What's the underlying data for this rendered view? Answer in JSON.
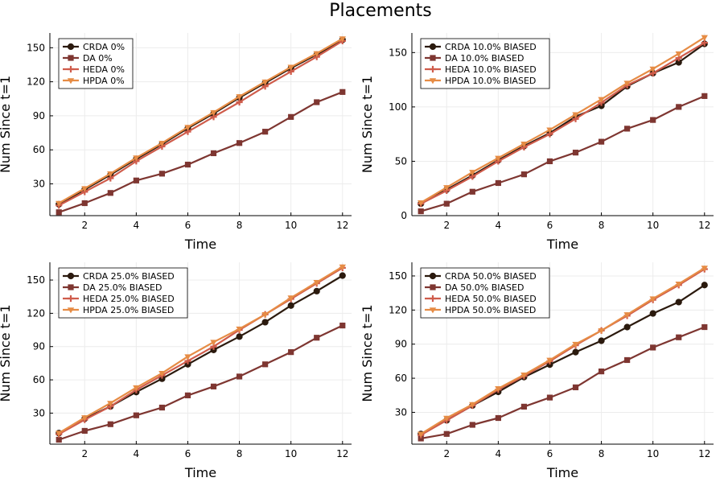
{
  "figure": {
    "title": "Placements"
  },
  "series_styles": [
    {
      "name": "CRDA",
      "color": "#2b1a0e",
      "marker": "circle"
    },
    {
      "name": "DA",
      "color": "#7e3631",
      "marker": "square"
    },
    {
      "name": "HEDA",
      "color": "#cf5c4b",
      "marker": "cross"
    },
    {
      "name": "HPDA",
      "color": "#e68c45",
      "marker": "triangle-down"
    }
  ],
  "chart_data": [
    {
      "type": "line",
      "xlabel": "Time",
      "ylabel": "Num Since t=1",
      "xlim": [
        0.65,
        12.35
      ],
      "ylim": [
        2,
        163
      ],
      "xticks": [
        2,
        4,
        6,
        8,
        10,
        12
      ],
      "yticks": [
        30,
        60,
        90,
        120,
        150
      ],
      "grid": true,
      "legend": "top-left",
      "x": [
        1,
        2,
        3,
        4,
        5,
        6,
        7,
        8,
        9,
        10,
        11,
        12
      ],
      "series": [
        {
          "name": "CRDA 0%",
          "values": [
            12,
            25,
            38,
            52,
            65,
            79,
            92,
            106,
            119,
            132,
            144,
            157
          ]
        },
        {
          "name": "DA 0%",
          "values": [
            5,
            13,
            22,
            33,
            39,
            47,
            57,
            66,
            76,
            89,
            102,
            111
          ]
        },
        {
          "name": "HEDA 0%",
          "values": [
            11,
            23,
            35,
            50,
            63,
            76,
            89,
            102,
            116,
            129,
            142,
            156
          ]
        },
        {
          "name": "HPDA 0%",
          "values": [
            13,
            26,
            39,
            53,
            66,
            80,
            93,
            107,
            120,
            133,
            145,
            158
          ]
        }
      ]
    },
    {
      "type": "line",
      "xlabel": "Time",
      "ylabel": "Num Since t=1",
      "xlim": [
        0.65,
        12.35
      ],
      "ylim": [
        0,
        168
      ],
      "xticks": [
        2,
        4,
        6,
        8,
        10,
        12
      ],
      "yticks": [
        0,
        50,
        100,
        150
      ],
      "grid": true,
      "legend": "top-left",
      "x": [
        1,
        2,
        3,
        4,
        5,
        6,
        7,
        8,
        9,
        10,
        11,
        12
      ],
      "series": [
        {
          "name": "CRDA 10.0% BIASED",
          "values": [
            11,
            24,
            37,
            51,
            64,
            76,
            91,
            101,
            119,
            131,
            141,
            158
          ]
        },
        {
          "name": "DA 10.0% BIASED",
          "values": [
            4,
            11,
            22,
            30,
            38,
            50,
            58,
            68,
            80,
            88,
            100,
            110
          ]
        },
        {
          "name": "HEDA 10.0% BIASED",
          "values": [
            11,
            23,
            36,
            50,
            63,
            75,
            89,
            104,
            120,
            131,
            145,
            159
          ]
        },
        {
          "name": "HPDA 10.0% BIASED",
          "values": [
            12,
            26,
            40,
            53,
            66,
            79,
            93,
            107,
            122,
            135,
            149,
            164
          ]
        }
      ]
    },
    {
      "type": "line",
      "xlabel": "Time",
      "ylabel": "Num Since t=1",
      "xlim": [
        0.65,
        12.35
      ],
      "ylim": [
        2,
        166
      ],
      "xticks": [
        2,
        4,
        6,
        8,
        10,
        12
      ],
      "yticks": [
        30,
        60,
        90,
        120,
        150
      ],
      "grid": true,
      "legend": "top-left",
      "x": [
        1,
        2,
        3,
        4,
        5,
        6,
        7,
        8,
        9,
        10,
        11,
        12
      ],
      "series": [
        {
          "name": "CRDA 25.0% BIASED",
          "values": [
            12,
            25,
            36,
            49,
            61,
            74,
            87,
            99,
            112,
            127,
            140,
            154
          ]
        },
        {
          "name": "DA 25.0% BIASED",
          "values": [
            6,
            14,
            20,
            28,
            35,
            46,
            54,
            63,
            74,
            85,
            98,
            109
          ]
        },
        {
          "name": "HEDA 25.0% BIASED",
          "values": [
            11,
            24,
            36,
            51,
            64,
            77,
            90,
            105,
            119,
            133,
            147,
            161
          ]
        },
        {
          "name": "HPDA 25.0% BIASED",
          "values": [
            12,
            26,
            39,
            53,
            66,
            81,
            94,
            106,
            119,
            134,
            148,
            162
          ]
        }
      ]
    },
    {
      "type": "line",
      "xlabel": "Time",
      "ylabel": "Num Since t=1",
      "xlim": [
        0.65,
        12.35
      ],
      "ylim": [
        2,
        162
      ],
      "xticks": [
        2,
        4,
        6,
        8,
        10,
        12
      ],
      "yticks": [
        30,
        60,
        90,
        120,
        150
      ],
      "grid": true,
      "legend": "top-left",
      "x": [
        1,
        2,
        3,
        4,
        5,
        6,
        7,
        8,
        9,
        10,
        11,
        12
      ],
      "series": [
        {
          "name": "CRDA 50.0% BIASED",
          "values": [
            11,
            23,
            36,
            48,
            61,
            72,
            83,
            93,
            105,
            117,
            127,
            142
          ]
        },
        {
          "name": "DA 50.0% BIASED",
          "values": [
            7,
            11,
            19,
            25,
            35,
            43,
            52,
            66,
            76,
            87,
            96,
            105
          ]
        },
        {
          "name": "HEDA 50.0% BIASED",
          "values": [
            10,
            23,
            36,
            50,
            62,
            75,
            89,
            102,
            115,
            129,
            142,
            156
          ]
        },
        {
          "name": "HPDA 50.0% BIASED",
          "values": [
            11,
            25,
            37,
            51,
            63,
            76,
            90,
            102,
            116,
            130,
            143,
            157
          ]
        }
      ]
    }
  ]
}
